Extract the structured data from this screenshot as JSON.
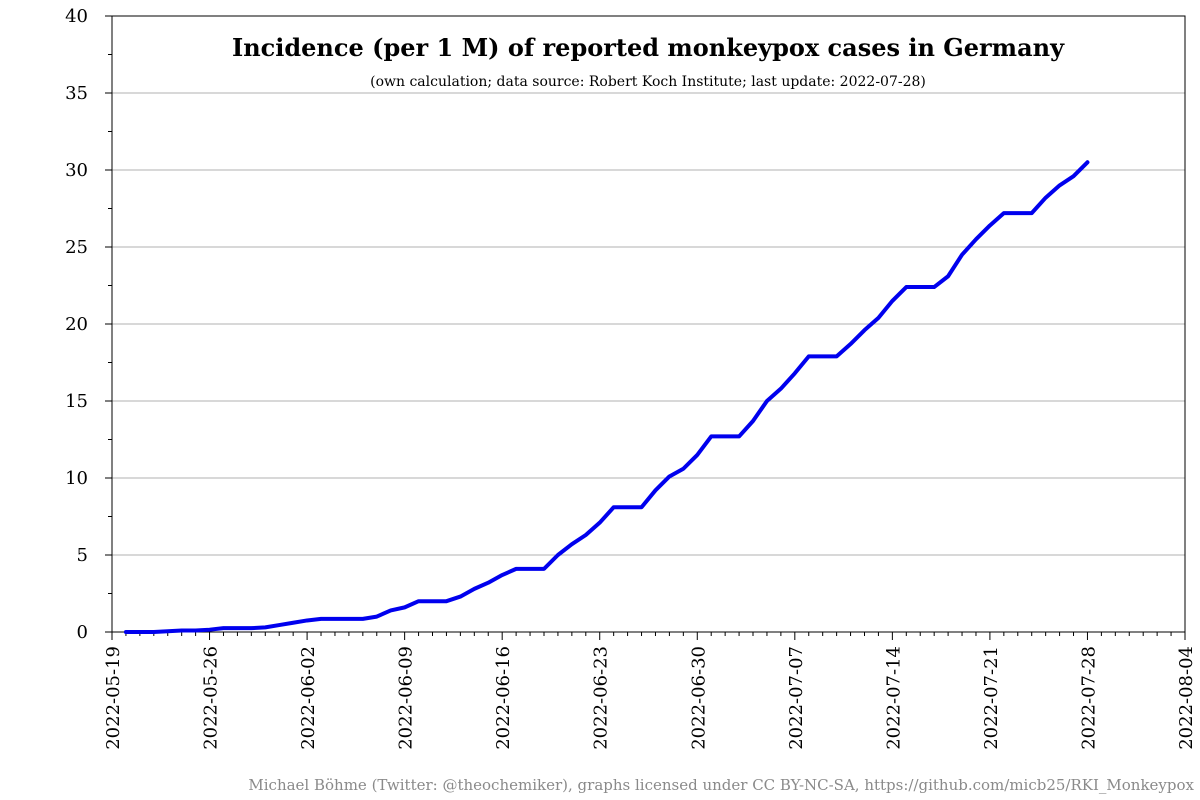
{
  "chart_data": {
    "type": "line",
    "title": "Incidence (per 1 M) of reported monkeypox cases in Germany",
    "subtitle": "(own calculation; data source: Robert Koch Institute; last update: 2022-07-28)",
    "xlabel": "",
    "ylabel": "",
    "xlim": [
      "2022-05-19",
      "2022-08-04"
    ],
    "ylim": [
      0,
      40
    ],
    "y_ticks": [
      0,
      5,
      10,
      15,
      20,
      25,
      30,
      35,
      40
    ],
    "x_tick_labels": [
      "2022-05-19",
      "2022-05-26",
      "2022-06-02",
      "2022-06-09",
      "2022-06-16",
      "2022-06-23",
      "2022-06-30",
      "2022-07-07",
      "2022-07-14",
      "2022-07-21",
      "2022-07-28",
      "2022-08-04"
    ],
    "grid": "horizontal",
    "line_color": "#0000ee",
    "series": [
      {
        "x": [
          "2022-05-20",
          "2022-05-21",
          "2022-05-22",
          "2022-05-23",
          "2022-05-24",
          "2022-05-25",
          "2022-05-26",
          "2022-05-27",
          "2022-05-28",
          "2022-05-29",
          "2022-05-30",
          "2022-05-31",
          "2022-06-01",
          "2022-06-02",
          "2022-06-03",
          "2022-06-04",
          "2022-06-05",
          "2022-06-06",
          "2022-06-07",
          "2022-06-08",
          "2022-06-09",
          "2022-06-10",
          "2022-06-11",
          "2022-06-12",
          "2022-06-13",
          "2022-06-14",
          "2022-06-15",
          "2022-06-16",
          "2022-06-17",
          "2022-06-18",
          "2022-06-19",
          "2022-06-20",
          "2022-06-21",
          "2022-06-22",
          "2022-06-23",
          "2022-06-24",
          "2022-06-25",
          "2022-06-26",
          "2022-06-27",
          "2022-06-28",
          "2022-06-29",
          "2022-06-30",
          "2022-07-01",
          "2022-07-02",
          "2022-07-03",
          "2022-07-04",
          "2022-07-05",
          "2022-07-06",
          "2022-07-07",
          "2022-07-08",
          "2022-07-09",
          "2022-07-10",
          "2022-07-11",
          "2022-07-12",
          "2022-07-13",
          "2022-07-14",
          "2022-07-15",
          "2022-07-16",
          "2022-07-17",
          "2022-07-18",
          "2022-07-19",
          "2022-07-20",
          "2022-07-21",
          "2022-07-22",
          "2022-07-23",
          "2022-07-24",
          "2022-07-25",
          "2022-07-26",
          "2022-07-27",
          "2022-07-28"
        ],
        "values": [
          0.0,
          0.0,
          0.0,
          0.05,
          0.1,
          0.1,
          0.15,
          0.25,
          0.25,
          0.25,
          0.3,
          0.45,
          0.6,
          0.75,
          0.85,
          0.85,
          0.85,
          0.85,
          1.0,
          1.4,
          1.6,
          2.0,
          2.0,
          2.0,
          2.3,
          2.8,
          3.2,
          3.7,
          4.1,
          4.1,
          4.1,
          5.0,
          5.7,
          6.3,
          7.1,
          8.1,
          8.1,
          8.1,
          9.2,
          10.1,
          10.6,
          11.5,
          12.7,
          12.7,
          12.7,
          13.7,
          15.0,
          15.8,
          16.8,
          17.9,
          17.9,
          17.9,
          18.7,
          19.6,
          20.4,
          21.5,
          22.4,
          22.4,
          22.4,
          23.1,
          24.5,
          25.5,
          26.4,
          27.2,
          27.2,
          27.2,
          28.2,
          29.0,
          29.6,
          30.5
        ]
      }
    ]
  },
  "footer": {
    "credit": "Michael Böhme (Twitter: @theochemiker), graphs licensed under CC BY-NC-SA, https://github.com/micb25/RKI_Monkeypox"
  }
}
